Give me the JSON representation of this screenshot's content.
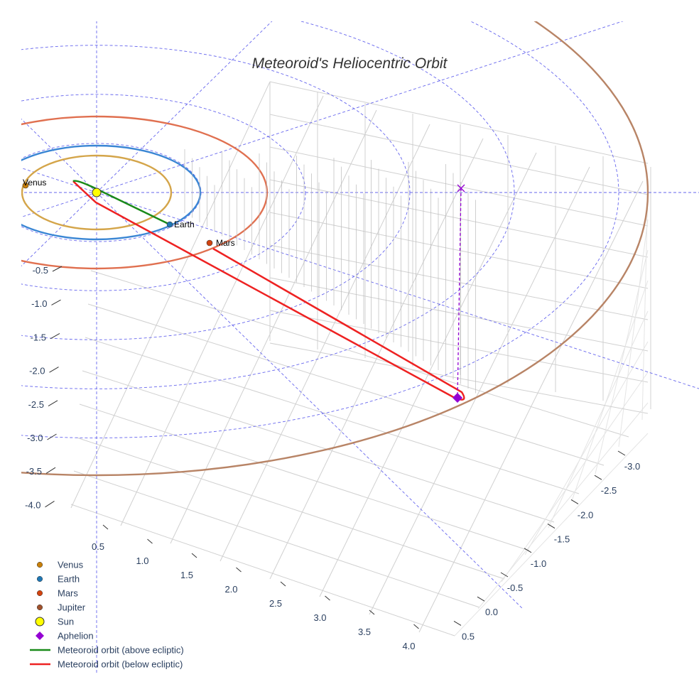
{
  "chart_data": {
    "type": "scatter3d",
    "title": "Meteoroid's Heliocentric Orbit",
    "x_ticks": [
      "0.5",
      "1.0",
      "1.5",
      "2.0",
      "2.5",
      "3.0",
      "3.5",
      "4.0"
    ],
    "y_ticks": [
      "-3.0",
      "-2.5",
      "-2.0",
      "-1.5",
      "-1.0",
      "-0.5",
      "0.0",
      "0.5"
    ],
    "z_ticks": [
      "-0.5",
      "-1.0",
      "-1.5",
      "-2.0",
      "-2.5",
      "-3.0",
      "-3.5",
      "-4.0"
    ],
    "planets": [
      {
        "name": "Venus",
        "orbit_au": 0.72,
        "color": "#c87f0a"
      },
      {
        "name": "Earth",
        "orbit_au": 1.0,
        "color": "#1f77b4"
      },
      {
        "name": "Mars",
        "orbit_au": 1.52,
        "color": "#d2430f"
      },
      {
        "name": "Jupiter",
        "orbit_au": 5.2,
        "color": "#a0522d"
      }
    ],
    "orbit_colors": {
      "venus": "#d4a54a",
      "earth": "#3a86d4",
      "mars": "#e07050",
      "jupiter": "#b88466",
      "above": "#1a8a1a",
      "below": "#ee2222",
      "grid": "#6666ee",
      "aphelion": "#9400d3"
    },
    "legend": [
      "Venus",
      "Earth",
      "Mars",
      "Jupiter",
      "Sun",
      "Aphelion",
      "Meteoroid orbit (above ecliptic)",
      "Meteoroid orbit (below ecliptic)"
    ],
    "legend_placement": "bottom-left"
  }
}
